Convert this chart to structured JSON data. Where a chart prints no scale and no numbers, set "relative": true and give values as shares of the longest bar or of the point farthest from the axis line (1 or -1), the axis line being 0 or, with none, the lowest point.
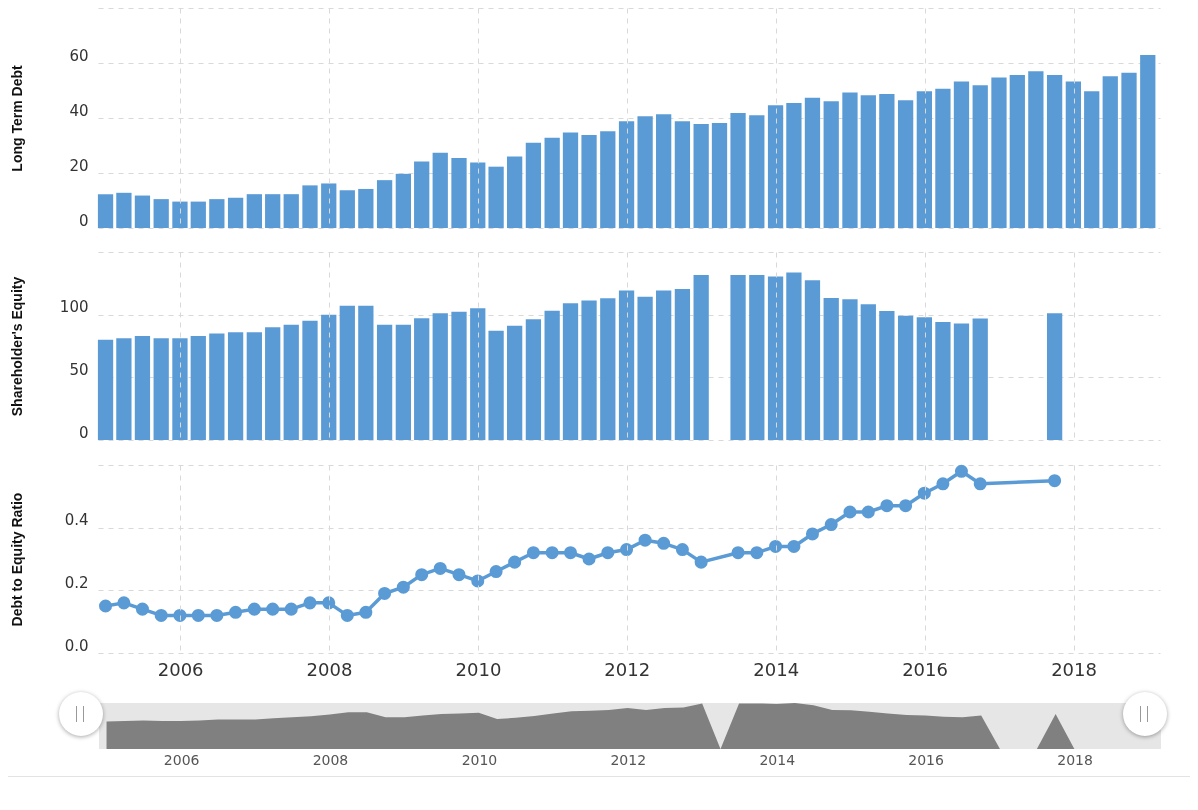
{
  "chart_data": [
    {
      "type": "bar",
      "ylabel": "Long Term Debt",
      "x": [
        "2004-12-31",
        "2005-03-31",
        "2005-06-30",
        "2005-09-30",
        "2005-12-31",
        "2006-03-31",
        "2006-06-30",
        "2006-09-30",
        "2006-12-31",
        "2007-03-31",
        "2007-06-30",
        "2007-09-30",
        "2007-12-31",
        "2008-03-31",
        "2008-06-30",
        "2008-09-30",
        "2008-12-31",
        "2009-03-31",
        "2009-06-30",
        "2009-09-30",
        "2009-12-31",
        "2010-03-31",
        "2010-06-30",
        "2010-09-30",
        "2010-12-31",
        "2011-03-31",
        "2011-06-30",
        "2011-09-30",
        "2011-12-31",
        "2012-03-31",
        "2012-06-30",
        "2012-09-30",
        "2012-12-31",
        "2013-03-31",
        "2013-06-30",
        "2013-09-30",
        "2013-12-31",
        "2014-03-31",
        "2014-06-30",
        "2014-09-30",
        "2014-12-31",
        "2015-03-31",
        "2015-06-30",
        "2015-09-30",
        "2015-12-31",
        "2016-03-31",
        "2016-06-30",
        "2016-09-30",
        "2016-12-31",
        "2017-03-31",
        "2017-06-30",
        "2017-09-30",
        "2017-12-31",
        "2018-03-31",
        "2018-06-30",
        "2018-09-30",
        "2018-12-31"
      ],
      "series": [
        {
          "color": "#5b9bd5",
          "values": [
            12.3,
            12.8,
            11.8,
            10.5,
            9.6,
            9.6,
            10.5,
            11,
            12.3,
            12.3,
            12.3,
            15.5,
            16.2,
            13.7,
            14.2,
            17.4,
            19.7,
            24.2,
            27.4,
            25.5,
            23.8,
            22.3,
            26,
            31,
            32.8,
            34.7,
            33.8,
            35.2,
            38.8,
            40.6,
            41.4,
            38.8,
            37.8,
            38.2,
            41.8,
            41,
            44.6,
            45.5,
            47.4,
            46.1,
            49.3,
            48.3,
            48.7,
            46.5,
            49.7,
            50.6,
            53.3,
            51.9,
            54.7,
            55.6,
            57,
            55.6,
            53.3,
            49.7,
            55.2,
            56.5,
            62.9
          ]
        }
      ],
      "xlim": [
        "2004-11-24",
        "2019-03-01"
      ],
      "xticks": [
        "2006",
        "2008",
        "2010",
        "2012",
        "2014",
        "2016",
        "2018"
      ],
      "ylim": [
        0,
        80
      ],
      "yticks": [
        0,
        20,
        40,
        60,
        {
          "value": 80,
          "label": null
        }
      ],
      "grid": true,
      "tick_labels": "y"
    },
    {
      "type": "bar",
      "ylabel": "Shareholder's Equity",
      "x": [
        "2004-12-31",
        "2005-03-31",
        "2005-06-30",
        "2005-09-30",
        "2005-12-31",
        "2006-03-31",
        "2006-06-30",
        "2006-09-30",
        "2006-12-31",
        "2007-03-31",
        "2007-06-30",
        "2007-09-30",
        "2007-12-31",
        "2008-03-31",
        "2008-06-30",
        "2008-09-30",
        "2008-12-31",
        "2009-03-31",
        "2009-06-30",
        "2009-09-30",
        "2009-12-31",
        "2010-03-31",
        "2010-06-30",
        "2010-09-30",
        "2010-12-31",
        "2011-03-31",
        "2011-06-30",
        "2011-09-30",
        "2011-12-31",
        "2012-03-31",
        "2012-06-30",
        "2012-09-30",
        "2012-12-31",
        "2013-03-31",
        "2013-06-30",
        "2013-09-30",
        "2013-12-31",
        "2014-03-31",
        "2014-06-30",
        "2014-09-30",
        "2014-12-31",
        "2015-03-31",
        "2015-06-30",
        "2015-09-30",
        "2015-12-31",
        "2016-03-31",
        "2016-06-30",
        "2016-09-30",
        "2016-12-31",
        "2017-03-31",
        "2017-06-30",
        "2017-09-30",
        "2017-12-31",
        "2018-03-31",
        "2018-06-30",
        "2018-09-30",
        "2018-12-31"
      ],
      "series": [
        {
          "color": "#5b9bd5",
          "values": [
            80,
            81.1,
            82.9,
            81.1,
            81.1,
            82.9,
            84.9,
            86,
            86,
            90,
            92,
            95.1,
            100,
            107.1,
            107.1,
            92,
            92,
            97.1,
            101.1,
            102.3,
            105.1,
            87.1,
            91.1,
            96.3,
            103.1,
            109.1,
            111.4,
            113,
            119.2,
            114.2,
            119.2,
            120.4,
            131.7,
            0,
            131.7,
            131.7,
            130.5,
            133.7,
            127.5,
            113.3,
            112.4,
            108.3,
            103,
            99.1,
            97.9,
            94.1,
            92.9,
            97,
            0,
            0,
            0,
            101.2,
            0,
            0,
            0,
            0,
            0
          ]
        }
      ],
      "xlim": [
        "2004-11-24",
        "2019-03-01"
      ],
      "xticks": [
        "2006",
        "2008",
        "2010",
        "2012",
        "2014",
        "2016",
        "2018"
      ],
      "ylim": [
        0,
        150
      ],
      "yticks": [
        0,
        50,
        100,
        {
          "value": 150,
          "label": null
        }
      ],
      "grid": true,
      "tick_labels": "y"
    },
    {
      "type": "line",
      "ylabel": "Debt to Equity Ratio",
      "marker": "circle",
      "line_style": "solid",
      "x": [
        "2004-12-31",
        "2005-03-31",
        "2005-06-30",
        "2005-09-30",
        "2005-12-31",
        "2006-03-31",
        "2006-06-30",
        "2006-09-30",
        "2006-12-31",
        "2007-03-31",
        "2007-06-30",
        "2007-09-30",
        "2007-12-31",
        "2008-03-31",
        "2008-06-30",
        "2008-09-30",
        "2008-12-31",
        "2009-03-31",
        "2009-06-30",
        "2009-09-30",
        "2009-12-31",
        "2010-03-31",
        "2010-06-30",
        "2010-09-30",
        "2010-12-31",
        "2011-03-31",
        "2011-06-30",
        "2011-09-30",
        "2011-12-31",
        "2012-03-31",
        "2012-06-30",
        "2012-09-30",
        "2012-12-31",
        "2013-03-31",
        "2013-06-30",
        "2013-09-30",
        "2013-12-31",
        "2014-03-31",
        "2014-06-30",
        "2014-09-30",
        "2014-12-31",
        "2015-03-31",
        "2015-06-30",
        "2015-09-30",
        "2015-12-31",
        "2016-03-31",
        "2016-06-30",
        "2016-09-30",
        "2016-12-31",
        "2017-03-31",
        "2017-06-30",
        "2017-09-30"
      ],
      "series": [
        {
          "color": "#5b9bd5",
          "values": [
            0.15,
            0.16,
            0.14,
            0.12,
            0.12,
            0.12,
            0.12,
            0.13,
            0.14,
            0.14,
            0.14,
            0.16,
            0.16,
            0.12,
            0.13,
            0.19,
            0.21,
            0.25,
            0.27,
            0.25,
            0.23,
            0.26,
            0.29,
            0.32,
            0.32,
            0.32,
            0.3,
            0.32,
            0.33,
            0.36,
            0.35,
            0.33,
            0.29,
            null,
            0.32,
            0.32,
            0.34,
            0.34,
            0.38,
            0.41,
            0.45,
            0.45,
            0.47,
            0.47,
            0.51,
            0.54,
            0.58,
            0.54,
            null,
            null,
            null,
            0.55
          ]
        }
      ],
      "xlim": [
        "2004-11-24",
        "2019-03-01"
      ],
      "xticks": [
        "2006",
        "2008",
        "2010",
        "2012",
        "2014",
        "2016",
        "2018"
      ],
      "ylim": [
        0,
        0.6
      ],
      "yticks": [
        {
          "value": 0,
          "label": "0.0"
        },
        0.2,
        0.4,
        {
          "value": 0.6,
          "label": null
        }
      ],
      "grid": true
    },
    {
      "type": "area",
      "relative": true,
      "x": [
        "2004-12-31",
        "2005-03-31",
        "2005-06-30",
        "2005-09-30",
        "2005-12-31",
        "2006-03-31",
        "2006-06-30",
        "2006-09-30",
        "2006-12-31",
        "2007-03-31",
        "2007-06-30",
        "2007-09-30",
        "2007-12-31",
        "2008-03-31",
        "2008-06-30",
        "2008-09-30",
        "2008-12-31",
        "2009-03-31",
        "2009-06-30",
        "2009-09-30",
        "2009-12-31",
        "2010-03-31",
        "2010-06-30",
        "2010-09-30",
        "2010-12-31",
        "2011-03-31",
        "2011-06-30",
        "2011-09-30",
        "2011-12-31",
        "2012-03-31",
        "2012-06-30",
        "2012-09-30",
        "2012-12-31",
        "2013-03-31",
        "2013-06-30",
        "2013-09-30",
        "2013-12-31",
        "2014-03-31",
        "2014-06-30",
        "2014-09-30",
        "2014-12-31",
        "2015-03-31",
        "2015-06-30",
        "2015-09-30",
        "2015-12-31",
        "2016-03-31",
        "2016-06-30",
        "2016-09-30",
        "2016-12-31",
        "2017-03-31",
        "2017-06-30",
        "2017-09-30",
        "2017-12-31",
        "2018-03-31",
        "2018-06-30",
        "2018-09-30",
        "2018-12-31"
      ],
      "series": [
        {
          "color": "#808080",
          "values": [
            0.6,
            0.61,
            0.62,
            0.61,
            0.61,
            0.62,
            0.64,
            0.64,
            0.64,
            0.67,
            0.69,
            0.71,
            0.75,
            0.8,
            0.8,
            0.69,
            0.69,
            0.73,
            0.76,
            0.77,
            0.79,
            0.65,
            0.68,
            0.72,
            0.77,
            0.82,
            0.83,
            0.85,
            0.89,
            0.85,
            0.89,
            0.9,
            0.99,
            0,
            0.99,
            0.99,
            0.98,
            1,
            0.95,
            0.85,
            0.84,
            0.81,
            0.77,
            0.74,
            0.73,
            0.7,
            0.69,
            0.73,
            0,
            0,
            0,
            0.76,
            0,
            0,
            0,
            0,
            0
          ]
        }
      ],
      "xlim": [
        "2004-11-24",
        "2019-03-01"
      ],
      "xticks": [
        "2006",
        "2008",
        "2010",
        "2012",
        "2014",
        "2016",
        "2018"
      ],
      "tick_labels": "x"
    }
  ]
}
